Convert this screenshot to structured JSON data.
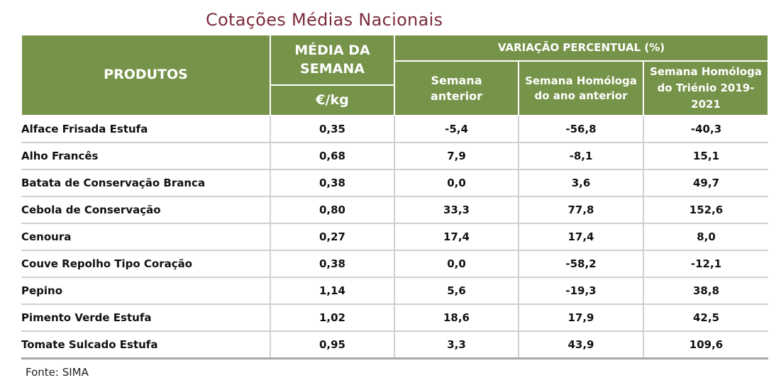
{
  "title": "Cotações Médias Nacionais",
  "header": {
    "produtos": "PRODUTOS",
    "media": "MÉDIA DA SEMANA",
    "unit": "€/kg",
    "variacao": "VARIAÇÃO PERCENTUAL (%)",
    "semana_anterior": "Semana anterior",
    "homologa_ano": "Semana Homóloga do ano anterior",
    "homologa_trienio": "Semana Homóloga do Triénio 2019-2021"
  },
  "rows": [
    {
      "produto": "Alface Frisada Estufa",
      "media": "0,35",
      "v1": "-5,4",
      "v2": "-56,8",
      "v3": "-40,3"
    },
    {
      "produto": "Alho Francês",
      "media": "0,68",
      "v1": "7,9",
      "v2": "-8,1",
      "v3": "15,1"
    },
    {
      "produto": "Batata de Conservação Branca",
      "media": "0,38",
      "v1": "0,0",
      "v2": "3,6",
      "v3": "49,7"
    },
    {
      "produto": "Cebola de Conservação",
      "media": "0,80",
      "v1": "33,3",
      "v2": "77,8",
      "v3": "152,6"
    },
    {
      "produto": "Cenoura",
      "media": "0,27",
      "v1": "17,4",
      "v2": "17,4",
      "v3": "8,0"
    },
    {
      "produto": "Couve Repolho Tipo Coração",
      "media": "0,38",
      "v1": "0,0",
      "v2": "-58,2",
      "v3": "-12,1"
    },
    {
      "produto": "Pepino",
      "media": "1,14",
      "v1": "5,6",
      "v2": "-19,3",
      "v3": "38,8"
    },
    {
      "produto": "Pimento Verde Estufa",
      "media": "1,02",
      "v1": "18,6",
      "v2": "17,9",
      "v3": "42,5"
    },
    {
      "produto": "Tomate Sulcado Estufa",
      "media": "0,95",
      "v1": "3,3",
      "v2": "43,9",
      "v3": "109,6"
    }
  ],
  "fonte": "Fonte: SIMA",
  "colors": {
    "header_bg": "#76934a",
    "title": "#7b2c3b"
  }
}
